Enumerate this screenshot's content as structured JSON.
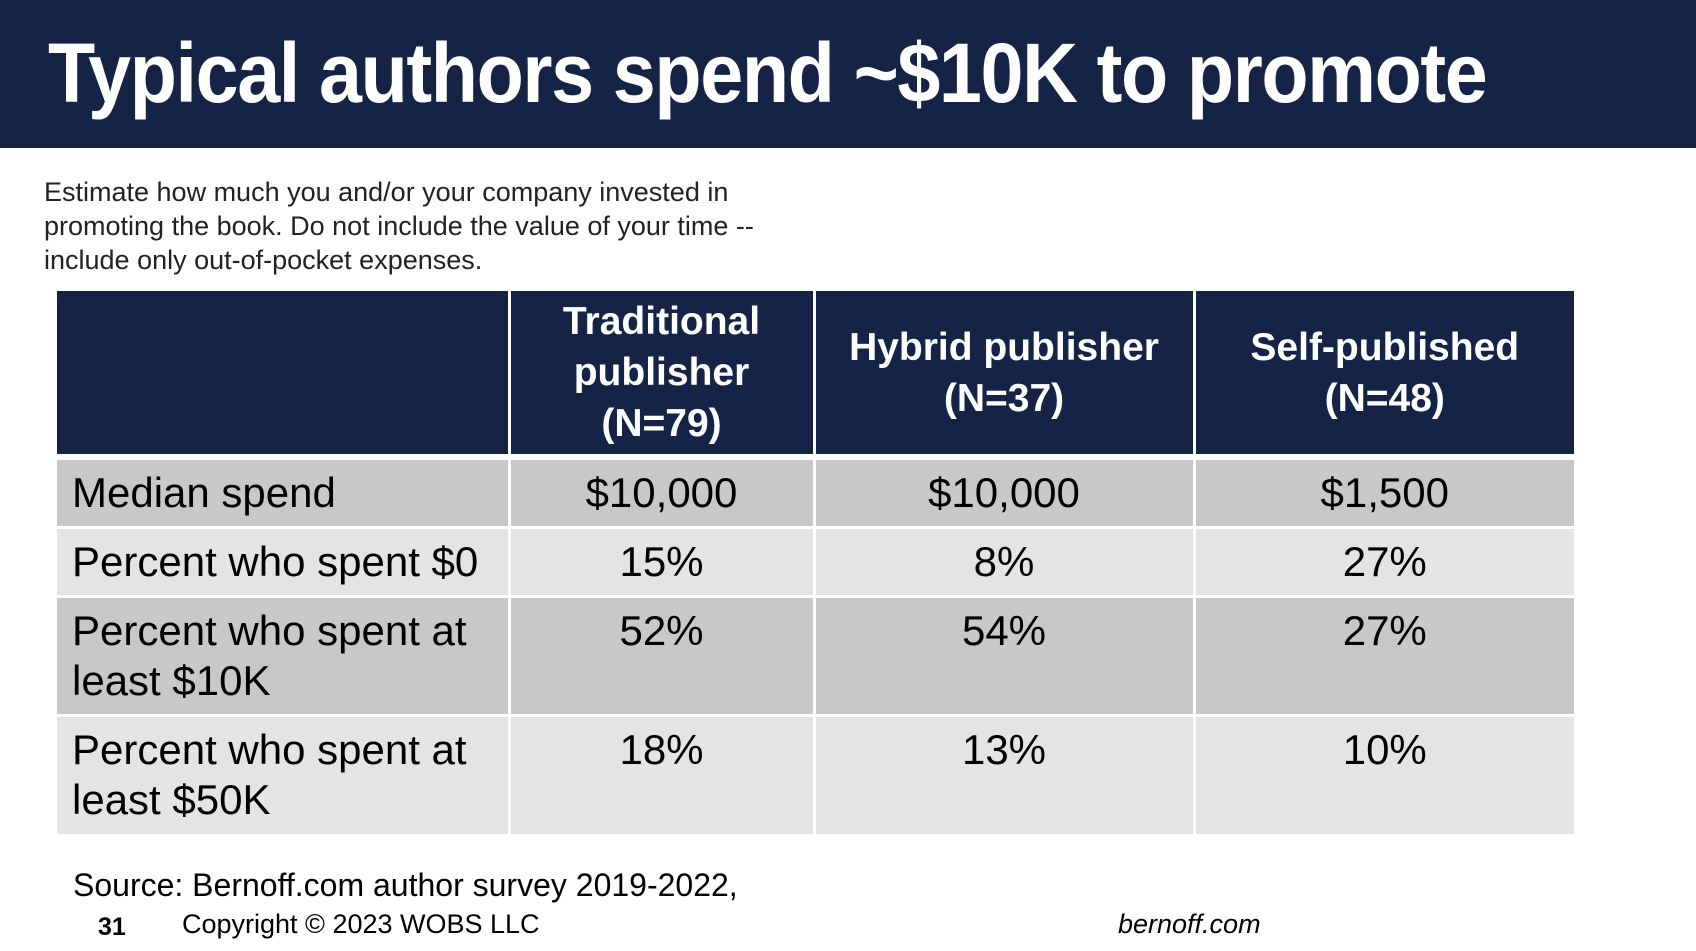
{
  "slide": {
    "title": "Typical authors spend ~$10K to promote",
    "question": "Estimate how much you and/or your company invested in promoting the book. Do not include the value of your time -- include only out-of-pocket expenses.",
    "source": "Source: Bernoff.com author survey 2019-2022,",
    "slide_number": "31",
    "copyright": "Copyright © 2023 WOBS LLC",
    "site": "bernoff.com",
    "colors": {
      "navy": "#142346",
      "row_dark": "#c8c8cb",
      "row_light": "#e4e4e6"
    }
  },
  "table": {
    "headers": [
      "",
      "Traditional publisher (N=79)",
      "Hybrid publisher (N=37)",
      "Self-published (N=48)"
    ],
    "rows": [
      {
        "label": "Median spend",
        "values": [
          "$10,000",
          "$10,000",
          "$1,500"
        ]
      },
      {
        "label": "Percent who spent $0",
        "values": [
          "15%",
          "8%",
          "27%"
        ]
      },
      {
        "label": "Percent who spent at least $10K",
        "values": [
          "52%",
          "54%",
          "27%"
        ]
      },
      {
        "label": "Percent who spent at least $50K",
        "values": [
          "18%",
          "13%",
          "10%"
        ]
      }
    ]
  }
}
